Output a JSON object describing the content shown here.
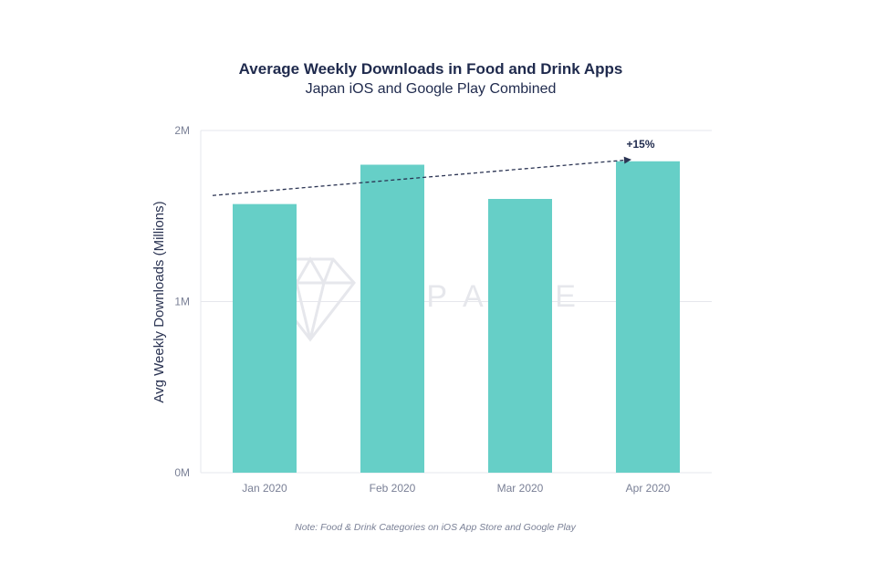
{
  "chart_data": {
    "type": "bar",
    "title": "Average Weekly Downloads in Food and Drink Apps",
    "subtitle": "Japan iOS and Google Play Combined",
    "ylabel": "Avg Weekly Downloads (Millions)",
    "xlabel": "",
    "categories": [
      "Jan 2020",
      "Feb 2020",
      "Mar 2020",
      "Apr 2020"
    ],
    "values": [
      1.57,
      1.8,
      1.6,
      1.82
    ],
    "ylim": [
      0,
      2
    ],
    "yticks": [
      {
        "value": 0,
        "label": "0M"
      },
      {
        "value": 1,
        "label": "1M"
      },
      {
        "value": 2,
        "label": "2M"
      }
    ],
    "grid": "horizontal",
    "annotation": {
      "text": "+15%",
      "from_value": 1.62,
      "to_value": 1.83,
      "style": "dashed-arrow"
    },
    "note": "Note: Food & Drink Categories on iOS App Store and Google Play",
    "watermark": "APP ANNIE",
    "watermark_icon": "diamond-logo-icon",
    "colors": {
      "bar": "#66cfc7",
      "text": "#1f2a4d",
      "axis_text": "#7a8096",
      "grid": "#e6e7ec",
      "arrow": "#2a3352",
      "watermark": "#e9eaee"
    }
  }
}
